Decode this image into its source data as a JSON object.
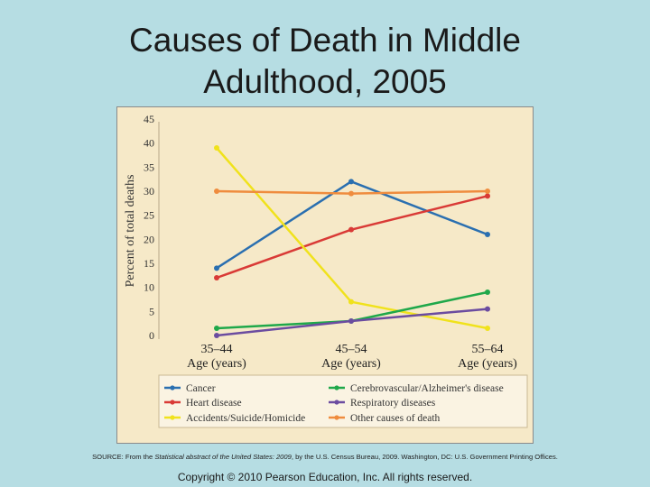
{
  "slide": {
    "title_line1": "Causes of Death in Middle",
    "title_line2": "Adulthood, 2005"
  },
  "source": {
    "prefix": "SOURCE: From the ",
    "italic": "Statistical abstract of the United States: 2009",
    "suffix": ", by the U.S. Census Bureau, 2009. Washington, DC: U.S. Government Printing Offices."
  },
  "copyright": "Copyright © 2010 Pearson Education, Inc. All rights reserved.",
  "chart_data": {
    "type": "line",
    "title": "Causes of Death in Middle Adulthood, 2005",
    "xlabel": "Age (years)",
    "ylabel": "Percent of total deaths",
    "categories": [
      "35–44",
      "45–54",
      "55–64"
    ],
    "category_sublabel": "Age (years)",
    "ylim": [
      0,
      45
    ],
    "yticks": [
      0,
      5,
      10,
      15,
      20,
      25,
      30,
      35,
      40,
      45
    ],
    "grid": false,
    "legend_position": "bottom",
    "series": [
      {
        "name": "Cancer",
        "color": "#2a6fb0",
        "values": [
          14,
          32,
          21
        ]
      },
      {
        "name": "Heart disease",
        "color": "#d93a36",
        "values": [
          12,
          22,
          29
        ]
      },
      {
        "name": "Accidents/Suicide/Homicide",
        "color": "#f0e21c",
        "values": [
          39,
          7,
          1.5
        ]
      },
      {
        "name": "Cerebrovascular/Alzheimer's disease",
        "color": "#1fa84a",
        "values": [
          1.5,
          3,
          9
        ]
      },
      {
        "name": "Respiratory diseases",
        "color": "#6b4ca0",
        "values": [
          0,
          3,
          5.5
        ]
      },
      {
        "name": "Other causes of death",
        "color": "#ef8c3e",
        "values": [
          30,
          29.5,
          30
        ]
      }
    ]
  }
}
